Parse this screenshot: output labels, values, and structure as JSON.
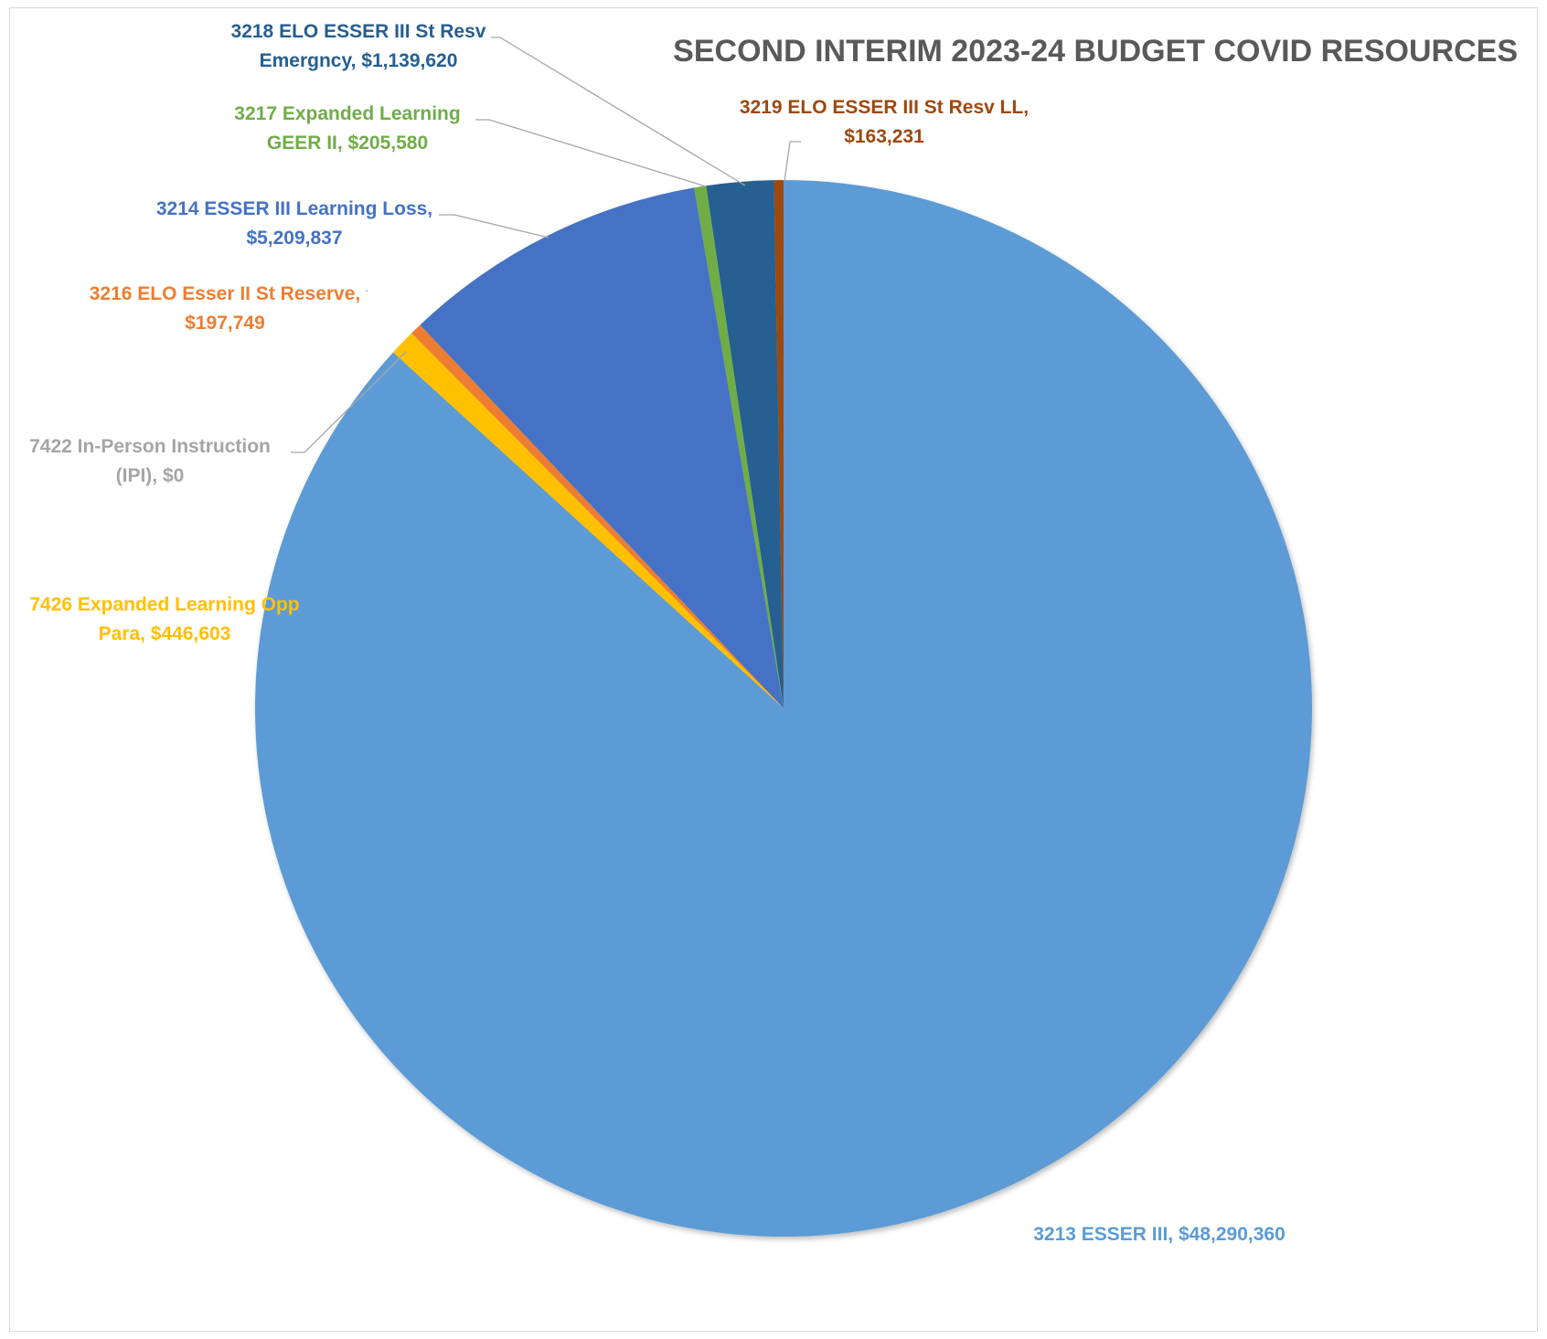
{
  "chart_data": {
    "type": "pie",
    "title": "SECOND INTERIM 2023-24 BUDGET COVID RESOURCES",
    "slices": [
      {
        "category": "3213 ESSER III",
        "value": 48290360,
        "color": "#5B9BD5",
        "label_lines": [
          "3213 ESSER III, $48,290,360"
        ]
      },
      {
        "category": "7426 Expanded Learning Opp Para",
        "value": 446603,
        "color": "#FFC000",
        "label_lines": [
          "7426 Expanded Learning Opp",
          "Para, $446,603"
        ]
      },
      {
        "category": "7422 In-Person Instruction (IPI)",
        "value": 0,
        "color": "#A5A5A5",
        "label_lines": [
          "7422 In-Person Instruction",
          "(IPI), $0"
        ]
      },
      {
        "category": "3216 ELO Esser II St Reserve",
        "value": 197749,
        "color": "#ED7D31",
        "label_lines": [
          "3216 ELO Esser II St Reserve,",
          "$197,749"
        ]
      },
      {
        "category": "3214 ESSER III Learning Loss",
        "value": 5209837,
        "color": "#4472C4",
        "label_lines": [
          "3214 ESSER III Learning Loss,",
          "$5,209,837"
        ]
      },
      {
        "category": "3217 Expanded Learning GEER II",
        "value": 205580,
        "color": "#70AD47",
        "label_lines": [
          "3217 Expanded Learning",
          "GEER II, $205,580"
        ]
      },
      {
        "category": "3218 ELO ESSER III St Resv Emergncy",
        "value": 1139620,
        "color": "#255E91",
        "label_lines": [
          "3218 ELO ESSER III St Resv",
          "Emergncy, $1,139,620"
        ]
      },
      {
        "category": "3219 ELO ESSER III St Resv LL",
        "value": 163231,
        "color": "#9E480E",
        "label_lines": [
          "3219 ELO ESSER III St Resv LL,",
          "$163,231"
        ]
      }
    ],
    "label_colors": [
      "#5B9BD5",
      "#FFC000",
      "#A5A5A5",
      "#ED7D31",
      "#4472C4",
      "#70AD47",
      "#255E91",
      "#9E480E"
    ],
    "start_angle": "12 o'clock, counter-clockwise",
    "legend": "none"
  }
}
